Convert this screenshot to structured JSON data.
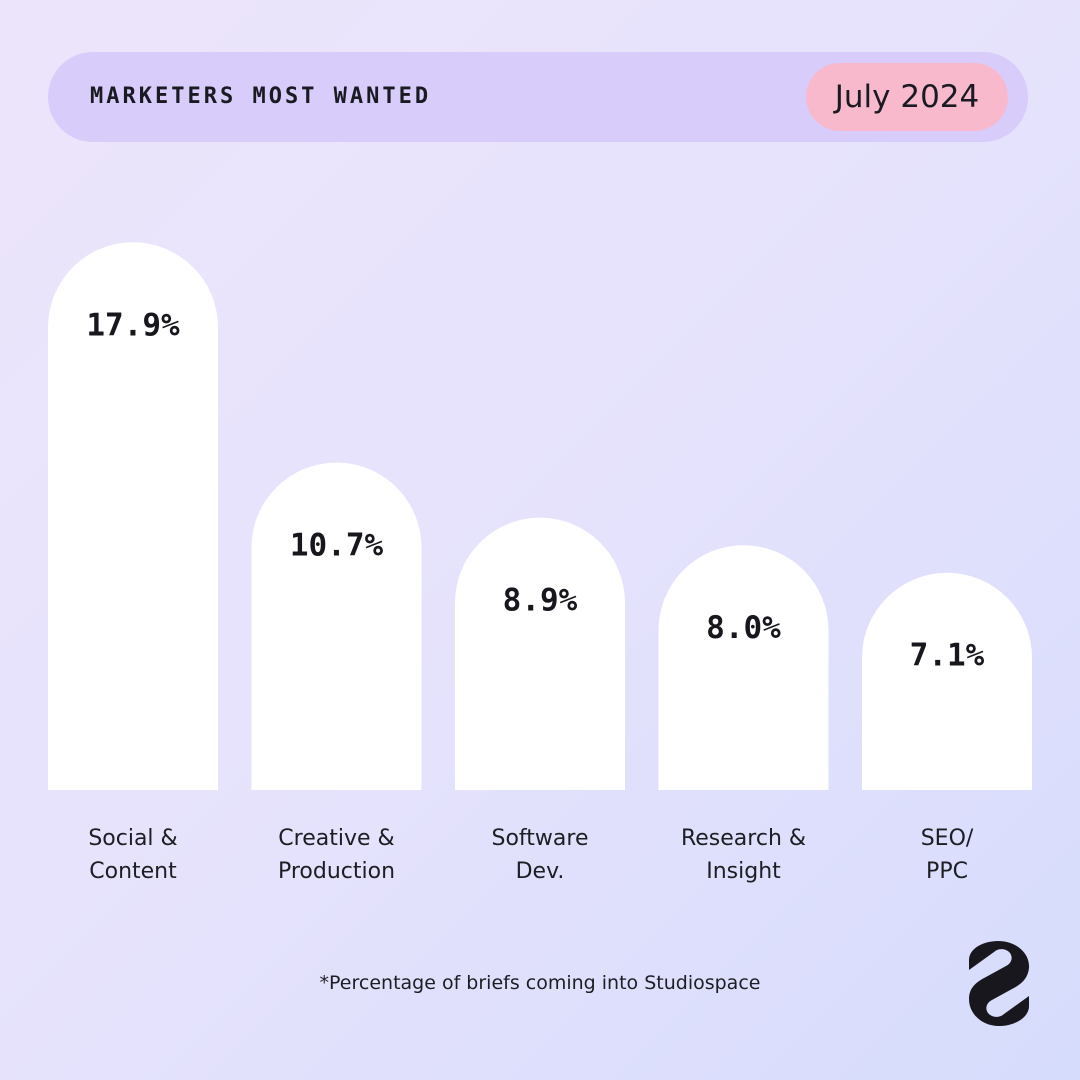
{
  "header": {
    "title": "MARKETERS MOST WANTED",
    "date": "July 2024"
  },
  "chart_data": {
    "type": "bar",
    "title": "MARKETERS MOST WANTED",
    "categories": [
      [
        "Social &",
        "Content"
      ],
      [
        "Creative &",
        "Production"
      ],
      [
        "Software",
        "Dev."
      ],
      [
        "Research &",
        "Insight"
      ],
      [
        "SEO/",
        "PPC"
      ]
    ],
    "values": [
      17.9,
      10.7,
      8.9,
      8.0,
      7.1
    ],
    "value_labels": [
      "17.9%",
      "10.7%",
      "8.9%",
      "8.0%",
      "7.1%"
    ],
    "unit": "%",
    "xlabel": "",
    "ylabel": "",
    "grid": false
  },
  "footnote": "*Percentage of briefs coming into Studiospace",
  "colors": {
    "bar": "#ffffff",
    "header_bg": "#d7ccfa",
    "date_pill": "#f9b9cd",
    "text": "#15151c"
  },
  "icons": {
    "logo": "studiospace-logo-icon"
  }
}
